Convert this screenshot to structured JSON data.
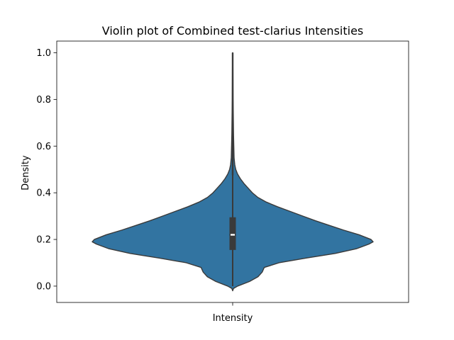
{
  "chart_data": {
    "type": "violin",
    "title": "Violin plot of Combined test-clarius Intensities",
    "xlabel": "Intensity",
    "ylabel": "Density",
    "ylim": [
      -0.07,
      1.05
    ],
    "yticks": [
      0.0,
      0.2,
      0.4,
      0.6,
      0.8,
      1.0
    ],
    "ytick_labels": [
      "0.0",
      "0.2",
      "0.4",
      "0.6",
      "0.8",
      "1.0"
    ],
    "grid": false,
    "color": "#3274a1",
    "edge_color": "#3a3a3a",
    "violin": {
      "name": "Intensity",
      "kde": [
        {
          "y": -0.02,
          "w": 0.0
        },
        {
          "y": -0.01,
          "w": 0.006
        },
        {
          "y": 0.0,
          "w": 0.035
        },
        {
          "y": 0.02,
          "w": 0.12
        },
        {
          "y": 0.04,
          "w": 0.18
        },
        {
          "y": 0.06,
          "w": 0.21
        },
        {
          "y": 0.08,
          "w": 0.225
        },
        {
          "y": 0.1,
          "w": 0.33
        },
        {
          "y": 0.12,
          "w": 0.52
        },
        {
          "y": 0.14,
          "w": 0.73
        },
        {
          "y": 0.16,
          "w": 0.88
        },
        {
          "y": 0.18,
          "w": 0.97
        },
        {
          "y": 0.19,
          "w": 1.0
        },
        {
          "y": 0.2,
          "w": 0.985
        },
        {
          "y": 0.22,
          "w": 0.9
        },
        {
          "y": 0.24,
          "w": 0.79
        },
        {
          "y": 0.26,
          "w": 0.69
        },
        {
          "y": 0.28,
          "w": 0.59
        },
        {
          "y": 0.3,
          "w": 0.5
        },
        {
          "y": 0.32,
          "w": 0.41
        },
        {
          "y": 0.34,
          "w": 0.32
        },
        {
          "y": 0.36,
          "w": 0.24
        },
        {
          "y": 0.38,
          "w": 0.18
        },
        {
          "y": 0.4,
          "w": 0.14
        },
        {
          "y": 0.42,
          "w": 0.11
        },
        {
          "y": 0.44,
          "w": 0.08
        },
        {
          "y": 0.46,
          "w": 0.055
        },
        {
          "y": 0.48,
          "w": 0.035
        },
        {
          "y": 0.5,
          "w": 0.022
        },
        {
          "y": 0.52,
          "w": 0.015
        },
        {
          "y": 0.55,
          "w": 0.01
        },
        {
          "y": 0.6,
          "w": 0.008
        },
        {
          "y": 0.65,
          "w": 0.006
        },
        {
          "y": 0.7,
          "w": 0.005
        },
        {
          "y": 0.75,
          "w": 0.004
        },
        {
          "y": 0.8,
          "w": 0.003
        },
        {
          "y": 0.9,
          "w": 0.002
        },
        {
          "y": 1.0,
          "w": 0.001
        }
      ],
      "min": -0.02,
      "whisker_low": 0.0,
      "q1": 0.155,
      "median": 0.22,
      "q3": 0.295,
      "whisker_high": 0.475,
      "max": 1.0
    }
  }
}
